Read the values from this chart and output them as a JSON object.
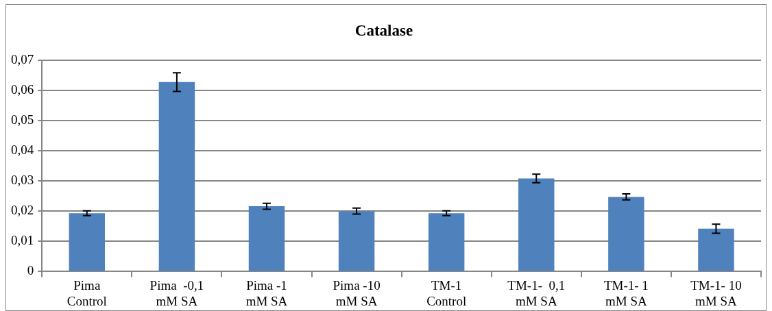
{
  "chart_data": {
    "type": "bar",
    "title": "Catalase",
    "categories": [
      "Pima Control",
      "Pima  -0,1 mM SA",
      "Pima -1 mM SA",
      "Pima -10 mM SA",
      "TM-1 Control",
      "TM-1-  0,1 mM SA",
      "TM-1- 1 mM SA",
      "TM-1- 10 mM SA"
    ],
    "values": [
      0.0193,
      0.0627,
      0.0216,
      0.02,
      0.0193,
      0.0308,
      0.0247,
      0.0142
    ],
    "errors": [
      0.0008,
      0.0031,
      0.001,
      0.001,
      0.0008,
      0.0014,
      0.001,
      0.0015
    ],
    "color": "#4f81bd",
    "ylim": [
      0,
      0.07
    ],
    "yticks": [
      {
        "value": 0,
        "label": "0"
      },
      {
        "value": 0.01,
        "label": "0,01"
      },
      {
        "value": 0.02,
        "label": "0,02"
      },
      {
        "value": 0.03,
        "label": "0,03"
      },
      {
        "value": 0.04,
        "label": "0,04"
      },
      {
        "value": 0.05,
        "label": "0,05"
      },
      {
        "value": 0.06,
        "label": "0,06"
      },
      {
        "value": 0.07,
        "label": "0,07"
      }
    ],
    "grid": "y",
    "legend": false
  }
}
